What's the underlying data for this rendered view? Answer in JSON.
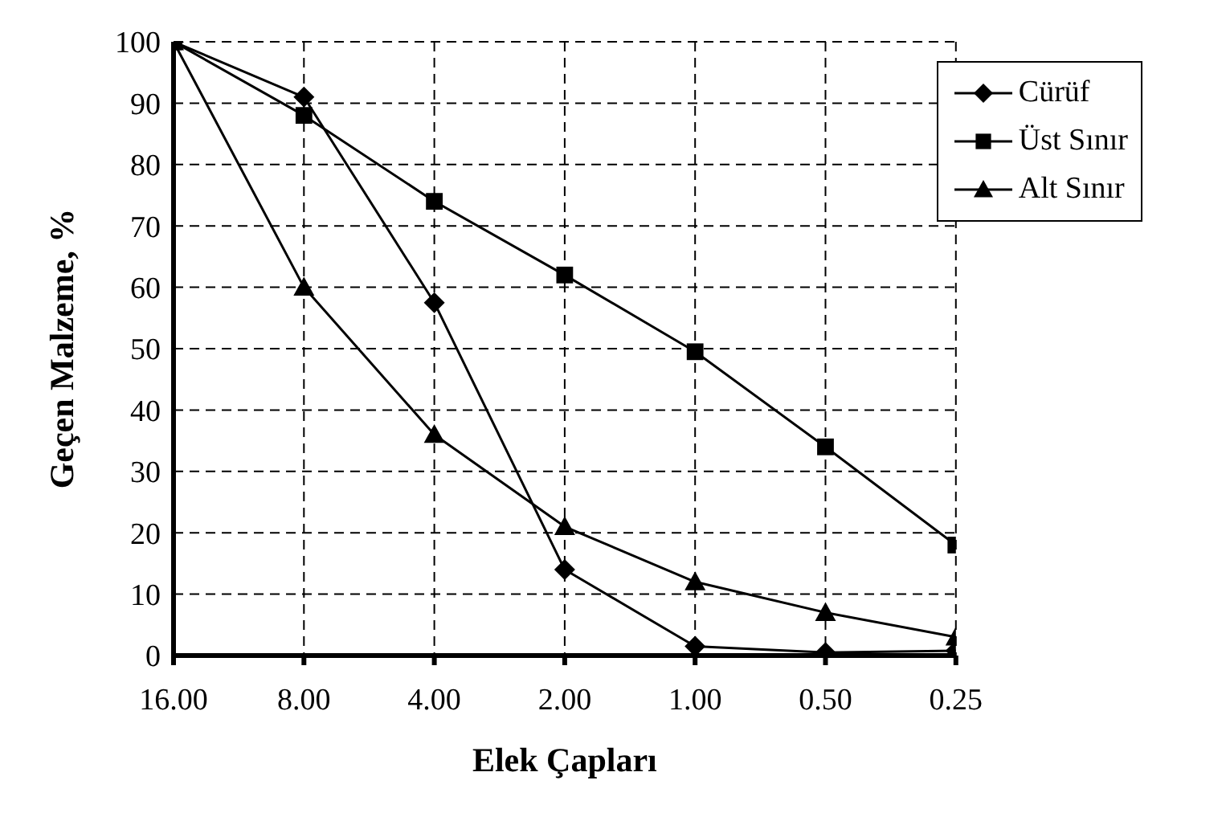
{
  "chart_data": {
    "type": "line",
    "xlabel": "Elek Çapları",
    "ylabel": "Geçen Malzeme, %",
    "categories": [
      "16.00",
      "8.00",
      "4.00",
      "2.00",
      "1.00",
      "0.50",
      "0.25"
    ],
    "series": [
      {
        "name": "Cürüf",
        "color": "#000000",
        "marker": "diamond",
        "values": [
          100,
          91,
          57.5,
          14,
          1.5,
          0.5,
          0.8
        ]
      },
      {
        "name": "Üst Sınır",
        "color": "#000000",
        "marker": "square",
        "values": [
          100,
          88,
          74,
          62,
          49.5,
          34,
          18
        ]
      },
      {
        "name": "Alt Sınır",
        "color": "#000000",
        "marker": "triangle",
        "values": [
          100,
          60,
          36,
          21,
          12,
          7,
          3
        ]
      }
    ],
    "ylim": [
      0,
      100
    ],
    "yticks": [
      0,
      10,
      20,
      30,
      40,
      50,
      60,
      70,
      80,
      90,
      100
    ],
    "grid": true,
    "line_style": "solid",
    "legend": "top right"
  }
}
